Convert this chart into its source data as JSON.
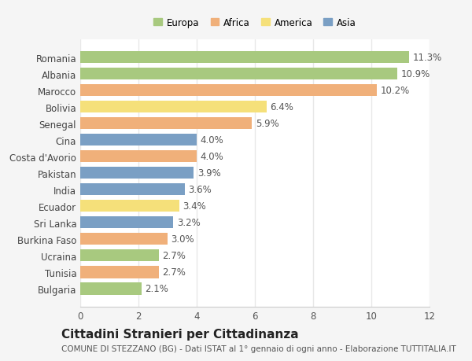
{
  "countries": [
    "Romania",
    "Albania",
    "Marocco",
    "Bolivia",
    "Senegal",
    "Cina",
    "Costa d'Avorio",
    "Pakistan",
    "India",
    "Ecuador",
    "Sri Lanka",
    "Burkina Faso",
    "Ucraina",
    "Tunisia",
    "Bulgaria"
  ],
  "values": [
    11.3,
    10.9,
    10.2,
    6.4,
    5.9,
    4.0,
    4.0,
    3.9,
    3.6,
    3.4,
    3.2,
    3.0,
    2.7,
    2.7,
    2.1
  ],
  "continents": [
    "Europa",
    "Europa",
    "Africa",
    "America",
    "Africa",
    "Asia",
    "Africa",
    "Asia",
    "Asia",
    "America",
    "Asia",
    "Africa",
    "Europa",
    "Africa",
    "Europa"
  ],
  "colors": {
    "Europa": "#a8c97f",
    "Africa": "#f0b07a",
    "America": "#f5e07a",
    "Asia": "#7a9fc4"
  },
  "legend_order": [
    "Europa",
    "Africa",
    "America",
    "Asia"
  ],
  "title": "Cittadini Stranieri per Cittadinanza",
  "subtitle": "COMUNE DI STEZZANO (BG) - Dati ISTAT al 1° gennaio di ogni anno - Elaborazione TUTTITALIA.IT",
  "xlim": [
    0,
    12
  ],
  "xticks": [
    0,
    2,
    4,
    6,
    8,
    10,
    12
  ],
  "plot_bg": "#ffffff",
  "fig_bg": "#f5f5f5",
  "grid_color": "#e8e8e8",
  "title_fontsize": 11,
  "subtitle_fontsize": 7.5,
  "tick_fontsize": 8.5,
  "label_fontsize": 8.5,
  "bar_height": 0.72
}
